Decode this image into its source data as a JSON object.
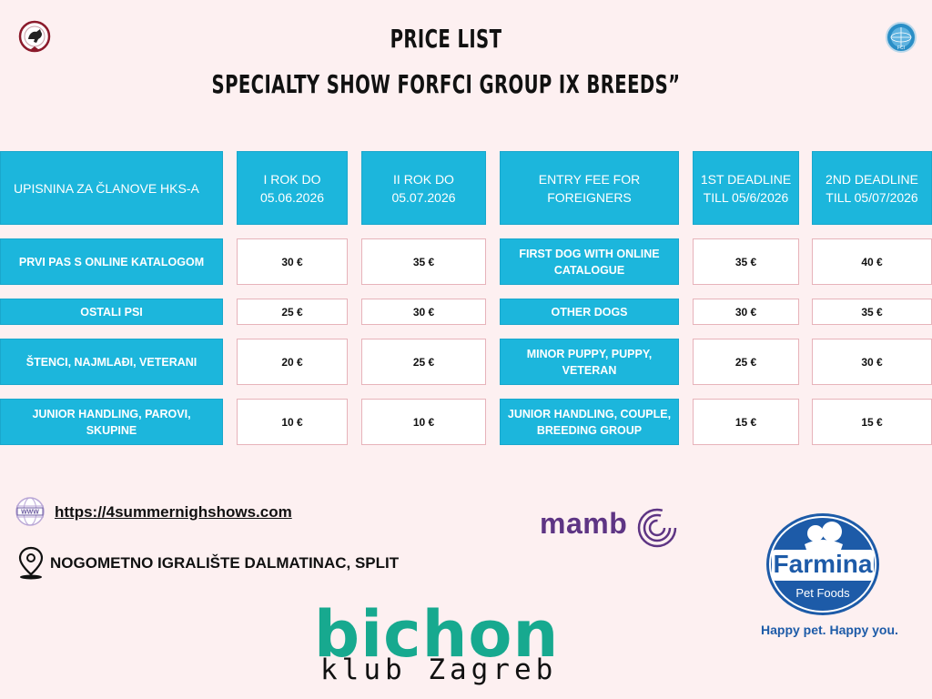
{
  "header": {
    "title_line1": "PRICE LIST",
    "title_line2": "SPECIALTY SHOW FORFCI GROUP IX BREEDS”"
  },
  "table": {
    "head": {
      "members_label": "UPISNINA ZA ČLANOVE HKS-A",
      "rok1": "I ROK DO 05.06.2026",
      "rok2": "II ROK DO 05.07.2026",
      "foreign_label": "ENTRY FEE FOR FOREIGNERS",
      "deadline1": "1ST DEADLINE TILL 05/6/2026",
      "deadline2": "2ND DEADLINE TILL 05/07/2026"
    },
    "rows": [
      {
        "hr_label": "PRVI PAS S ONLINE KATALOGOM",
        "hr_fee1": "30 €",
        "hr_fee2": "35 €",
        "en_label": "FIRST DOG WITH ONLINE CATALOGUE",
        "en_fee1": "35 €",
        "en_fee2": "40 €"
      },
      {
        "hr_label": "OSTALI PSI",
        "hr_fee1": "25 €",
        "hr_fee2": "30 €",
        "en_label": "OTHER DOGS",
        "en_fee1": "30 €",
        "en_fee2": "35 €"
      },
      {
        "hr_label": "ŠTENCI, NAJMLAĐI, VETERANI",
        "hr_fee1": "20 €",
        "hr_fee2": "25 €",
        "en_label": "MINOR PUPPY, PUPPY, VETERAN",
        "en_fee1": "25 €",
        "en_fee2": "30 €"
      },
      {
        "hr_label": "JUNIOR HANDLING, PAROVI, SKUPINE",
        "hr_fee1": "10 €",
        "hr_fee2": "10 €",
        "en_label": "JUNIOR HANDLING, COUPLE, BREEDING GROUP",
        "en_fee1": "15 €",
        "en_fee2": "15 €"
      }
    ]
  },
  "contact": {
    "website": "https://4summernighshows.com",
    "www_icon_text": "WWW",
    "location": "NOGOMETNO IGRALIŠTE DALMATINAC, SPLIT"
  },
  "sponsors": {
    "mamb": "mamb",
    "farmina_name": "Farmina",
    "farmina_sub": "Pet Foods",
    "farmina_slogan": "Happy pet. Happy you.",
    "bichon": "bichon",
    "bichon_sub": "klub Zagreb"
  },
  "logos": {
    "fci_text": "FCI"
  },
  "colors": {
    "background": "#fdf0f1",
    "cell_blue": "#1cb6dc",
    "cell_border_pink": "#e7b3ba",
    "mamb_purple": "#5e3584",
    "bichon_teal": "#17a98f",
    "farmina_blue": "#1d5ba8"
  }
}
